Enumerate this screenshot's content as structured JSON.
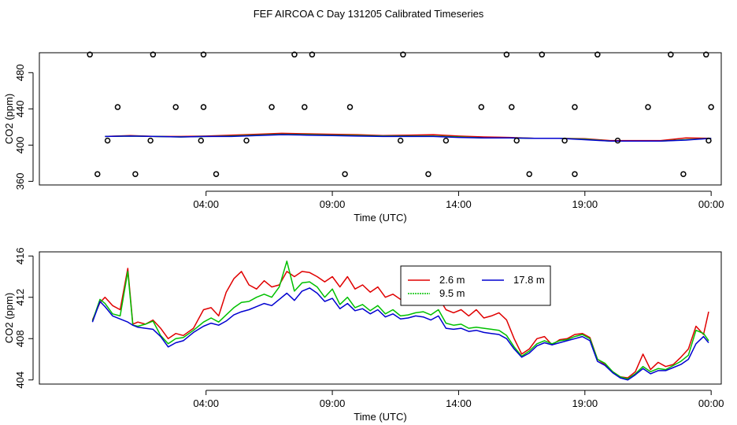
{
  "page": {
    "title": "FEF AIRCOA C  Day 131205  Calibrated Timeseries"
  },
  "colors": {
    "red": "#e00000",
    "green": "#00c000",
    "blue": "#0000d0",
    "axis": "#000000"
  },
  "chart_data": [
    {
      "type": "line",
      "panel": "top",
      "xlabel": "Time (UTC)",
      "ylabel": "CO2 (ppm)",
      "xlim": [
        -2.6,
        24.4
      ],
      "ylim": [
        356,
        502
      ],
      "x_ticks": [
        {
          "value": 4,
          "label": "04:00"
        },
        {
          "value": 9,
          "label": "09:00"
        },
        {
          "value": 14,
          "label": "14:00"
        },
        {
          "value": 19,
          "label": "19:00"
        },
        {
          "value": 24,
          "label": "00:00"
        }
      ],
      "y_ticks": [
        360,
        400,
        440,
        480
      ],
      "series": [
        {
          "name": "2.6 m",
          "color_key": "red",
          "x": [
            0,
            1,
            2,
            3,
            4,
            5,
            6,
            7,
            8,
            9,
            10,
            11,
            12,
            13,
            14,
            15,
            16,
            17,
            18,
            19,
            20,
            21,
            22,
            23,
            24
          ],
          "y": [
            409.5,
            410.5,
            409.5,
            409.5,
            410,
            411,
            412,
            413,
            412.5,
            412,
            411.5,
            410.5,
            411,
            411.5,
            410,
            409,
            408.5,
            407.5,
            407.5,
            407,
            405,
            405,
            405,
            408,
            407.5
          ]
        },
        {
          "name": "9.5 m",
          "color_key": "green",
          "x": [
            0,
            1,
            2,
            3,
            4,
            5,
            6,
            7,
            8,
            9,
            10,
            11,
            12,
            13,
            14,
            15,
            16,
            17,
            18,
            19,
            20,
            21,
            22,
            23,
            24
          ],
          "y": [
            409.5,
            410,
            409.5,
            409,
            409.5,
            410,
            411,
            412,
            411.5,
            411,
            410.5,
            410,
            410,
            410,
            409,
            408,
            408,
            407.5,
            407.5,
            406.5,
            404.5,
            404.5,
            404.5,
            406,
            407.5
          ]
        },
        {
          "name": "17.8 m",
          "color_key": "blue",
          "x": [
            0,
            1,
            2,
            3,
            4,
            5,
            6,
            7,
            8,
            9,
            10,
            11,
            12,
            13,
            14,
            15,
            16,
            17,
            18,
            19,
            20,
            21,
            22,
            23,
            24
          ],
          "y": [
            409.5,
            410,
            409.5,
            409,
            409.5,
            409.5,
            410.5,
            411.5,
            411,
            410.5,
            410,
            409.5,
            409.5,
            409.5,
            408.5,
            408,
            408,
            407.5,
            407.5,
            406,
            404.5,
            404.5,
            404.5,
            405.5,
            407.5
          ]
        }
      ],
      "flag_points": {
        "x": [
          -0.3,
          1.2,
          4.4,
          9.5,
          12.8,
          16.8,
          18.6,
          22.9,
          0.1,
          1.8,
          3.8,
          5.6,
          11.7,
          13.5,
          16.3,
          18.2,
          20.3,
          23.9,
          0.5,
          2.8,
          3.9,
          6.6,
          7.9,
          9.7,
          14.9,
          16.1,
          18.6,
          21.5,
          24.0,
          -0.6,
          1.9,
          3.9,
          7.5,
          8.2,
          11.8,
          15.9,
          17.3,
          19.5,
          22.4,
          23.8
        ],
        "y": [
          368,
          368,
          368,
          368,
          368,
          368,
          368,
          368,
          405,
          405,
          405,
          405,
          405,
          405,
          405,
          405,
          405,
          405,
          442,
          442,
          442,
          442,
          442,
          442,
          442,
          442,
          442,
          442,
          442,
          500,
          500,
          500,
          500,
          500,
          500,
          500,
          500,
          500,
          500,
          500
        ]
      }
    },
    {
      "type": "line",
      "panel": "bottom",
      "xlabel": "Time (UTC)",
      "ylabel": "CO2 (ppm)",
      "xlim": [
        -2.6,
        24.4
      ],
      "ylim": [
        403.6,
        416.4
      ],
      "x_ticks": [
        {
          "value": 4,
          "label": "04:00"
        },
        {
          "value": 9,
          "label": "09:00"
        },
        {
          "value": 14,
          "label": "14:00"
        },
        {
          "value": 19,
          "label": "19:00"
        },
        {
          "value": 24,
          "label": "00:00"
        }
      ],
      "y_ticks": [
        404,
        408,
        412,
        416
      ],
      "legend": {
        "placement": "top-center"
      },
      "series": [
        {
          "name": "2.6 m",
          "color_key": "red",
          "x": [
            -0.5,
            -0.2,
            0,
            0.3,
            0.6,
            0.9,
            1.1,
            1.3,
            1.6,
            1.9,
            2.2,
            2.5,
            2.8,
            3.1,
            3.5,
            3.9,
            4.2,
            4.5,
            4.8,
            5.1,
            5.4,
            5.7,
            6.0,
            6.3,
            6.6,
            6.9,
            7.2,
            7.5,
            7.8,
            8.1,
            8.4,
            8.7,
            9.0,
            9.3,
            9.6,
            9.9,
            10.2,
            10.5,
            10.8,
            11.1,
            11.4,
            11.7,
            12.0,
            12.3,
            12.6,
            12.9,
            13.2,
            13.5,
            13.8,
            14.1,
            14.4,
            14.7,
            15.0,
            15.3,
            15.6,
            15.9,
            16.2,
            16.5,
            16.8,
            17.1,
            17.4,
            17.7,
            18.0,
            18.3,
            18.6,
            18.9,
            19.2,
            19.5,
            19.8,
            20.1,
            20.4,
            20.7,
            21.0,
            21.3,
            21.6,
            21.9,
            22.2,
            22.5,
            22.8,
            23.1,
            23.4,
            23.7,
            23.9
          ],
          "y": [
            409.8,
            411.5,
            412.0,
            411.2,
            410.8,
            414.8,
            409.4,
            409.6,
            409.4,
            409.8,
            409.0,
            408.0,
            408.5,
            408.3,
            409.0,
            410.8,
            411.0,
            410.2,
            412.5,
            413.8,
            414.5,
            413.2,
            412.8,
            413.6,
            413.0,
            413.2,
            414.5,
            414.0,
            414.5,
            414.4,
            414.0,
            413.5,
            414.0,
            413.0,
            414.0,
            412.8,
            413.2,
            412.5,
            413.0,
            412.0,
            412.3,
            411.8,
            411.7,
            411.9,
            412.0,
            412.5,
            412.0,
            410.8,
            410.5,
            410.8,
            410.2,
            410.8,
            410.0,
            410.2,
            410.5,
            409.8,
            408.0,
            406.5,
            407.0,
            408.0,
            408.2,
            407.4,
            407.9,
            408.0,
            408.4,
            408.5,
            408.1,
            406.0,
            405.5,
            404.8,
            404.3,
            404.2,
            404.8,
            406.5,
            405.0,
            405.7,
            405.3,
            405.5,
            406.2,
            407.0,
            409.2,
            408.4,
            410.6
          ]
        },
        {
          "name": "9.5 m",
          "color_key": "green",
          "x": [
            -0.5,
            -0.2,
            0,
            0.3,
            0.6,
            0.9,
            1.1,
            1.3,
            1.6,
            1.9,
            2.2,
            2.5,
            2.8,
            3.1,
            3.5,
            3.9,
            4.2,
            4.5,
            4.8,
            5.1,
            5.4,
            5.7,
            6.0,
            6.3,
            6.6,
            6.9,
            7.2,
            7.5,
            7.8,
            8.1,
            8.4,
            8.7,
            9.0,
            9.3,
            9.6,
            9.9,
            10.2,
            10.5,
            10.8,
            11.1,
            11.4,
            11.7,
            12.0,
            12.3,
            12.6,
            12.9,
            13.2,
            13.5,
            13.8,
            14.1,
            14.4,
            14.7,
            15.0,
            15.3,
            15.6,
            15.9,
            16.2,
            16.5,
            16.8,
            17.1,
            17.4,
            17.7,
            18.0,
            18.3,
            18.6,
            18.9,
            19.2,
            19.5,
            19.8,
            20.1,
            20.4,
            20.7,
            21.0,
            21.3,
            21.6,
            21.9,
            22.2,
            22.5,
            22.8,
            23.1,
            23.4,
            23.7,
            23.9
          ],
          "y": [
            409.7,
            411.8,
            411.4,
            410.4,
            410.2,
            414.5,
            409.3,
            409.2,
            409.4,
            409.7,
            408.3,
            407.5,
            408.0,
            408.1,
            408.8,
            409.6,
            410.0,
            409.6,
            410.3,
            411.0,
            411.5,
            411.6,
            412.0,
            412.3,
            412.0,
            413.0,
            415.5,
            412.6,
            413.4,
            413.5,
            413.0,
            412.0,
            412.8,
            411.3,
            412.0,
            411.0,
            411.3,
            410.7,
            411.2,
            410.4,
            410.8,
            410.2,
            410.3,
            410.5,
            410.6,
            410.3,
            410.8,
            409.5,
            409.3,
            409.4,
            409.0,
            409.1,
            409.0,
            408.9,
            408.8,
            408.3,
            407.2,
            406.3,
            406.8,
            407.5,
            407.8,
            407.5,
            407.8,
            407.9,
            408.2,
            408.4,
            408.0,
            406.0,
            405.6,
            404.8,
            404.3,
            404.1,
            404.6,
            405.3,
            404.8,
            405.1,
            405.0,
            405.4,
            405.8,
            406.4,
            408.8,
            408.5,
            407.8
          ]
        },
        {
          "name": "17.8 m",
          "color_key": "blue",
          "x": [
            -0.5,
            -0.2,
            0,
            0.3,
            0.6,
            0.9,
            1.1,
            1.3,
            1.6,
            1.9,
            2.2,
            2.5,
            2.8,
            3.1,
            3.5,
            3.9,
            4.2,
            4.5,
            4.8,
            5.1,
            5.4,
            5.7,
            6.0,
            6.3,
            6.6,
            6.9,
            7.2,
            7.5,
            7.8,
            8.1,
            8.4,
            8.7,
            9.0,
            9.3,
            9.6,
            9.9,
            10.2,
            10.5,
            10.8,
            11.1,
            11.4,
            11.7,
            12.0,
            12.3,
            12.6,
            12.9,
            13.2,
            13.5,
            13.8,
            14.1,
            14.4,
            14.7,
            15.0,
            15.3,
            15.6,
            15.9,
            16.2,
            16.5,
            16.8,
            17.1,
            17.4,
            17.7,
            18.0,
            18.3,
            18.6,
            18.9,
            19.2,
            19.5,
            19.8,
            20.1,
            20.4,
            20.7,
            21.0,
            21.3,
            21.6,
            21.9,
            22.2,
            22.5,
            22.8,
            23.1,
            23.4,
            23.7,
            23.9
          ],
          "y": [
            409.6,
            411.6,
            411.1,
            410.2,
            409.9,
            409.6,
            409.3,
            409.1,
            409.0,
            408.9,
            408.2,
            407.2,
            407.6,
            407.8,
            408.6,
            409.2,
            409.5,
            409.3,
            409.7,
            410.3,
            410.6,
            410.8,
            411.1,
            411.4,
            411.2,
            411.8,
            412.4,
            411.7,
            412.6,
            412.9,
            412.4,
            411.6,
            411.9,
            410.9,
            411.4,
            410.7,
            410.9,
            410.4,
            410.8,
            410.1,
            410.4,
            409.9,
            410.0,
            410.2,
            410.1,
            409.8,
            410.2,
            409.0,
            408.9,
            409.0,
            408.7,
            408.8,
            408.6,
            408.5,
            408.4,
            408.0,
            407.0,
            406.2,
            406.6,
            407.3,
            407.6,
            407.4,
            407.6,
            407.8,
            408.0,
            408.2,
            407.8,
            405.8,
            405.4,
            404.7,
            404.2,
            404.0,
            404.5,
            405.1,
            404.6,
            404.9,
            404.9,
            405.2,
            405.5,
            406.0,
            407.5,
            408.2,
            407.6
          ]
        }
      ]
    }
  ]
}
